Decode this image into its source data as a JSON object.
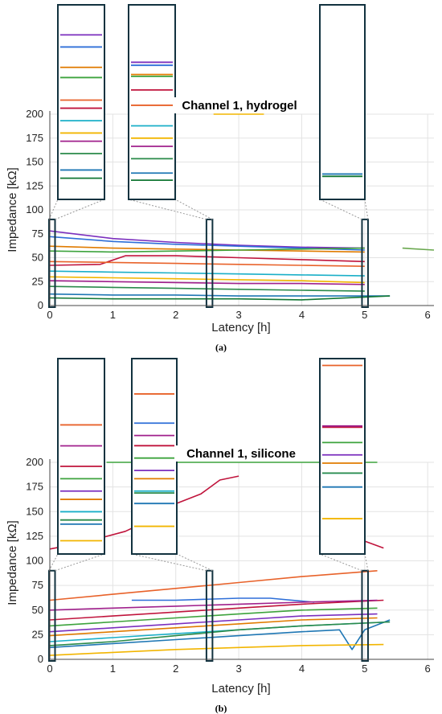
{
  "chart_data": [
    {
      "type": "line",
      "title": "Channel 1, hydrogel",
      "panel_label": "(a)",
      "xlabel": "Latency [h]",
      "ylabel": "Impedance [kΩ]",
      "xlim": [
        0,
        6.1
      ],
      "ylim": [
        0,
        200
      ],
      "xticks": [
        0,
        1,
        2,
        3,
        4,
        5,
        6
      ],
      "yticks": [
        0,
        25,
        50,
        75,
        100,
        125,
        150,
        175,
        200
      ],
      "grid": true,
      "series": [
        {
          "color": "#7B2FBE",
          "x": [
            0,
            1,
            2,
            3,
            4,
            5
          ],
          "y": [
            78,
            70,
            66,
            63,
            61,
            60
          ]
        },
        {
          "color": "#2E6FD8",
          "x": [
            0,
            1,
            2,
            3,
            4,
            5
          ],
          "y": [
            72,
            67,
            64,
            62,
            60,
            58
          ]
        },
        {
          "color": "#E07B00",
          "x": [
            0,
            1,
            2,
            3,
            4,
            5
          ],
          "y": [
            62,
            60,
            59,
            58,
            57,
            56
          ]
        },
        {
          "color": "#3DA33D",
          "x": [
            0,
            1,
            2,
            3,
            4,
            5
          ],
          "y": [
            57,
            56,
            57,
            58,
            59,
            60
          ]
        },
        {
          "color": "#C0143C",
          "x": [
            0,
            0.8,
            1.2,
            2,
            3,
            4,
            5
          ],
          "y": [
            42,
            43,
            52,
            52,
            50,
            48,
            46
          ]
        },
        {
          "color": "#E8622A",
          "x": [
            0,
            1,
            2,
            3,
            4,
            5
          ],
          "y": [
            46,
            45,
            44,
            43,
            42,
            41
          ]
        },
        {
          "color": "#1AAFC8",
          "x": [
            0,
            1,
            2,
            3,
            4,
            5
          ],
          "y": [
            36,
            35,
            34,
            33,
            32,
            31
          ]
        },
        {
          "color": "#F2B500",
          "x": [
            0,
            1,
            2,
            3,
            4,
            5
          ],
          "y": [
            30,
            29,
            28,
            27,
            26,
            24
          ]
        },
        {
          "color": "#A0208C",
          "x": [
            0,
            1,
            2,
            3,
            4,
            5
          ],
          "y": [
            26,
            25,
            24,
            23,
            23,
            22
          ]
        },
        {
          "color": "#2A8A4A",
          "x": [
            0,
            1,
            2,
            3,
            4,
            5
          ],
          "y": [
            20,
            19,
            18,
            17,
            16,
            15
          ]
        },
        {
          "color": "#1F77B4",
          "x": [
            0,
            1,
            2,
            3,
            4,
            5.4
          ],
          "y": [
            12,
            11,
            11,
            10,
            10,
            10
          ]
        },
        {
          "color": "#117733",
          "x": [
            0,
            1,
            2,
            3,
            4,
            5.4
          ],
          "y": [
            8,
            7,
            7,
            7,
            6,
            10
          ]
        },
        {
          "color": "#6AA84F",
          "x": [
            5.6,
            6.1
          ],
          "y": [
            60,
            58
          ]
        },
        {
          "color": "#F2B500",
          "x": [
            2.6,
            3,
            3.4
          ],
          "y": [
            200,
            200,
            200
          ]
        }
      ]
    },
    {
      "type": "line",
      "title": "Channel 1, silicone",
      "panel_label": "(b)",
      "xlabel": "Latency [h]",
      "ylabel": "Impedance [kΩ]",
      "xlim": [
        0,
        6.1
      ],
      "ylim": [
        0,
        200
      ],
      "xticks": [
        0,
        1,
        2,
        3,
        4,
        5,
        6
      ],
      "yticks": [
        0,
        25,
        50,
        75,
        100,
        125,
        150,
        175,
        200
      ],
      "grid": true,
      "series": [
        {
          "color": "#C0143C",
          "x": [
            0,
            0.5,
            1.2,
            1.6,
            2.0,
            2.4,
            2.7,
            3.0
          ],
          "y": [
            112,
            118,
            130,
            142,
            158,
            168,
            182,
            186
          ]
        },
        {
          "color": "#C0143C",
          "x": [
            5.0,
            5.3
          ],
          "y": [
            120,
            113
          ]
        },
        {
          "color": "#E8622A",
          "x": [
            0,
            1,
            2,
            3,
            4,
            5.2
          ],
          "y": [
            60,
            66,
            72,
            78,
            84,
            90
          ]
        },
        {
          "color": "#2E6FD8",
          "x": [
            1.3,
            2.0,
            3.0,
            3.5,
            4.2
          ],
          "y": [
            60,
            60,
            62,
            62,
            58
          ]
        },
        {
          "color": "#C0143C",
          "x": [
            0,
            1,
            2,
            3,
            4,
            5.3
          ],
          "y": [
            40,
            44,
            48,
            52,
            56,
            60
          ]
        },
        {
          "color": "#3DA33D",
          "x": [
            0,
            1,
            2,
            3,
            4,
            5.2
          ],
          "y": [
            34,
            38,
            42,
            46,
            50,
            52
          ]
        },
        {
          "color": "#7B2FBE",
          "x": [
            0,
            1,
            2,
            3,
            4,
            5.2
          ],
          "y": [
            28,
            32,
            36,
            40,
            44,
            46
          ]
        },
        {
          "color": "#E07B00",
          "x": [
            0,
            1,
            2,
            3,
            4,
            5.2
          ],
          "y": [
            24,
            28,
            32,
            36,
            40,
            42
          ]
        },
        {
          "color": "#1AAFC8",
          "x": [
            0,
            1,
            2,
            3,
            4,
            5.4
          ],
          "y": [
            18,
            22,
            26,
            30,
            34,
            38
          ]
        },
        {
          "color": "#1F77B4",
          "x": [
            0,
            1,
            2,
            3,
            4,
            4.6,
            4.8,
            5.0,
            5.4
          ],
          "y": [
            12,
            16,
            20,
            24,
            28,
            30,
            10,
            30,
            40
          ]
        },
        {
          "color": "#F2B500",
          "x": [
            0,
            1,
            2,
            3,
            4,
            5.3
          ],
          "y": [
            4,
            7,
            10,
            12,
            14,
            15
          ]
        },
        {
          "color": "#2A8A4A",
          "x": [
            0,
            1,
            2,
            3,
            4,
            5.4
          ],
          "y": [
            14,
            18,
            24,
            30,
            34,
            38
          ]
        },
        {
          "color": "#A0208C",
          "x": [
            0,
            1,
            2,
            3,
            4,
            5.2
          ],
          "y": [
            50,
            52,
            54,
            56,
            58,
            60
          ]
        },
        {
          "color": "#3DA33D",
          "x": [
            0.9,
            5.2
          ],
          "y": [
            200,
            200
          ]
        }
      ]
    }
  ]
}
